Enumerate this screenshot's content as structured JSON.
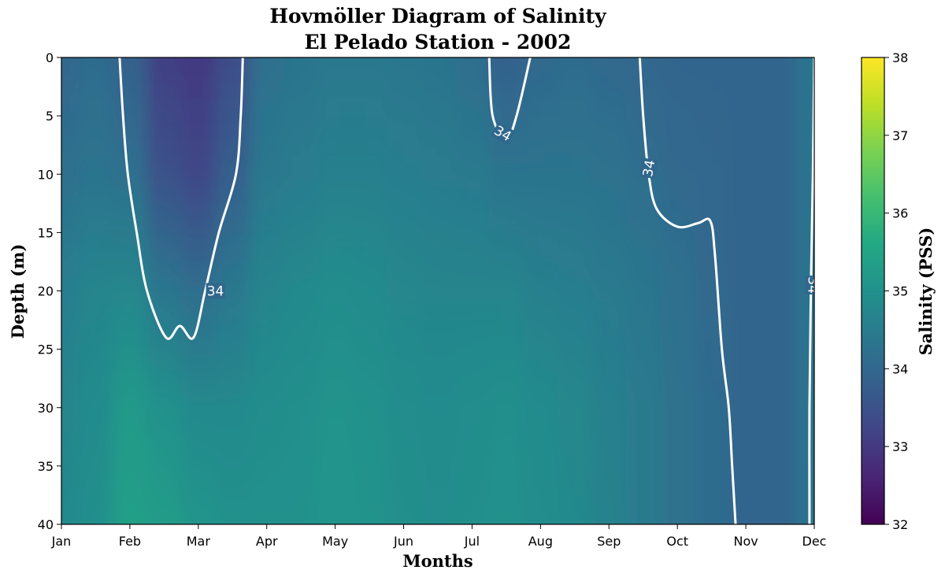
{
  "chart_data": {
    "type": "heatmap",
    "title": "Hovmöller Diagram of Salinity",
    "subtitle": "El Pelado Station - 2002",
    "xlabel": "Months",
    "ylabel": "Depth (m)",
    "colorbar_label": "Salinity (PSS)",
    "colormap": "viridis",
    "x_ticks": [
      "Jan",
      "Feb",
      "Mar",
      "Apr",
      "May",
      "Jun",
      "Jul",
      "Aug",
      "Sep",
      "Oct",
      "Nov",
      "Dec"
    ],
    "y_ticks": [
      0,
      5,
      10,
      15,
      20,
      25,
      30,
      35,
      40
    ],
    "colorbar_ticks": [
      32,
      33,
      34,
      35,
      36,
      37,
      38
    ],
    "xlim": [
      0,
      11
    ],
    "ylim": [
      40,
      0
    ],
    "vmin": 32,
    "vmax": 38,
    "months_x": [
      0,
      0.5,
      1,
      1.5,
      2,
      2.5,
      3,
      3.5,
      4,
      4.5,
      5,
      5.5,
      6,
      6.5,
      7,
      7.5,
      8,
      8.5,
      9,
      9.5,
      10,
      10.5,
      11
    ],
    "depths": [
      0,
      10,
      20,
      30,
      40
    ],
    "salinity": [
      [
        34.0,
        34.2,
        34.55,
        34.7,
        34.8
      ],
      [
        34.1,
        34.3,
        34.7,
        34.85,
        34.95
      ],
      [
        33.85,
        34.2,
        34.75,
        35.2,
        35.4
      ],
      [
        33.1,
        33.5,
        34.35,
        35.0,
        35.3
      ],
      [
        33.0,
        33.3,
        34.15,
        34.8,
        35.1
      ],
      [
        33.4,
        33.8,
        34.4,
        34.8,
        35.0
      ],
      [
        34.2,
        34.4,
        34.7,
        34.9,
        35.0
      ],
      [
        34.3,
        34.5,
        34.8,
        34.95,
        35.0
      ],
      [
        34.4,
        34.6,
        34.9,
        35.05,
        35.1
      ],
      [
        34.4,
        34.6,
        34.85,
        35.0,
        35.05
      ],
      [
        34.35,
        34.55,
        34.75,
        34.9,
        34.95
      ],
      [
        34.3,
        34.5,
        34.7,
        34.85,
        34.9
      ],
      [
        34.15,
        34.45,
        34.7,
        34.9,
        34.95
      ],
      [
        33.85,
        34.3,
        34.7,
        34.95,
        35.0
      ],
      [
        34.05,
        34.3,
        34.6,
        34.85,
        34.9
      ],
      [
        34.1,
        34.3,
        34.55,
        34.75,
        34.8
      ],
      [
        34.05,
        34.25,
        34.45,
        34.6,
        34.65
      ],
      [
        34.0,
        34.15,
        34.35,
        34.45,
        34.45
      ],
      [
        33.95,
        34.05,
        34.2,
        34.25,
        34.25
      ],
      [
        33.95,
        34.0,
        34.05,
        34.1,
        34.1
      ],
      [
        33.95,
        33.95,
        33.95,
        33.95,
        33.95
      ],
      [
        33.95,
        33.95,
        33.95,
        33.95,
        33.95
      ],
      [
        34.3,
        34.3,
        34.3,
        34.3,
        34.3
      ]
    ],
    "contours": [
      {
        "level": 34,
        "label": "34",
        "points": [
          [
            0.85,
            0
          ],
          [
            0.9,
            5
          ],
          [
            0.97,
            10
          ],
          [
            1.1,
            15
          ],
          [
            1.25,
            20
          ],
          [
            1.53,
            24
          ],
          [
            1.73,
            23
          ],
          [
            1.93,
            24
          ],
          [
            2.1,
            20
          ],
          [
            2.3,
            15
          ],
          [
            2.55,
            10
          ],
          [
            2.62,
            5
          ],
          [
            2.65,
            0
          ]
        ]
      },
      {
        "level": 34,
        "label": "34",
        "points": [
          [
            6.25,
            0
          ],
          [
            6.3,
            5
          ],
          [
            6.5,
            7
          ],
          [
            6.65,
            5
          ],
          [
            6.85,
            0
          ]
        ]
      },
      {
        "level": 34,
        "label": "34",
        "points": [
          [
            8.45,
            0
          ],
          [
            8.5,
            5
          ],
          [
            8.58,
            10
          ],
          [
            8.7,
            13
          ],
          [
            9.0,
            14.5
          ],
          [
            9.3,
            14.2
          ],
          [
            9.48,
            14
          ],
          [
            9.55,
            17
          ],
          [
            9.65,
            25
          ],
          [
            9.75,
            30
          ],
          [
            9.8,
            35
          ],
          [
            9.85,
            40
          ]
        ]
      },
      {
        "level": 34,
        "label": "34",
        "points": [
          [
            11.0,
            0
          ],
          [
            10.98,
            10
          ],
          [
            10.95,
            20
          ],
          [
            10.93,
            30
          ],
          [
            10.93,
            40
          ]
        ]
      }
    ],
    "contour_labels": [
      {
        "text": "34",
        "x": 2.25,
        "y": 20,
        "angle": 0
      },
      {
        "text": "34",
        "x": 6.45,
        "y": 6.5,
        "angle": 30
      },
      {
        "text": "34",
        "x": 8.58,
        "y": 9.5,
        "angle": -80
      },
      {
        "text": "34",
        "x": 10.98,
        "y": 19.5,
        "angle": 90
      }
    ]
  }
}
